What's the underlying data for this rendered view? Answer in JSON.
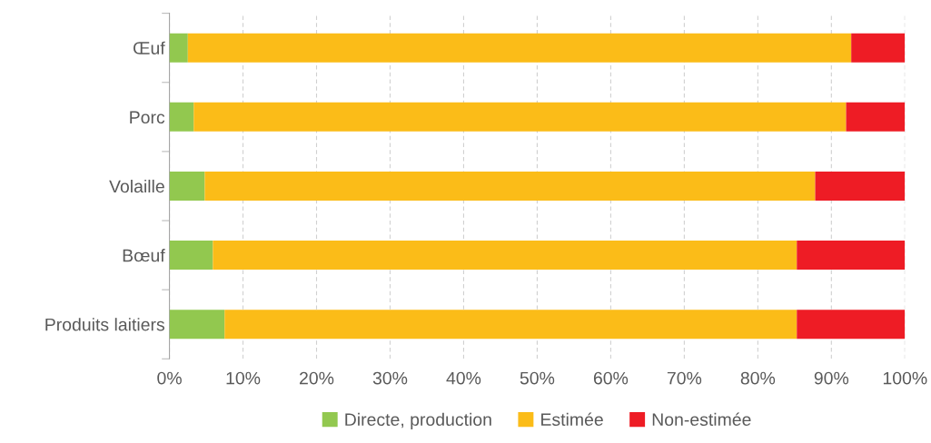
{
  "chart_data": {
    "type": "bar",
    "orientation": "horizontal",
    "stacked": true,
    "categories": [
      "Œuf",
      "Porc",
      "Volaille",
      "Bœuf",
      "Produits laitiers"
    ],
    "series": [
      {
        "name": "Directe, production",
        "color": "#92c84f",
        "values": [
          2.5,
          3.3,
          4.8,
          5.9,
          7.5
        ]
      },
      {
        "name": "Estimée",
        "color": "#fbbc18",
        "values": [
          90.2,
          88.7,
          83.0,
          79.4,
          77.8
        ]
      },
      {
        "name": "Non-estimée",
        "color": "#ee1c25",
        "values": [
          7.3,
          8.0,
          12.2,
          14.7,
          14.7
        ]
      }
    ],
    "xlim": [
      0,
      100
    ],
    "xticks": [
      {
        "value": 0,
        "label": "0%"
      },
      {
        "value": 10,
        "label": "10%"
      },
      {
        "value": 20,
        "label": "20%"
      },
      {
        "value": 30,
        "label": "30%"
      },
      {
        "value": 40,
        "label": "40%"
      },
      {
        "value": 50,
        "label": "50%"
      },
      {
        "value": 60,
        "label": "60%"
      },
      {
        "value": 70,
        "label": "70%"
      },
      {
        "value": 80,
        "label": "80%"
      },
      {
        "value": 90,
        "label": "90%"
      },
      {
        "value": 100,
        "label": "100%"
      }
    ],
    "grid": "x",
    "legend": "bottom"
  }
}
